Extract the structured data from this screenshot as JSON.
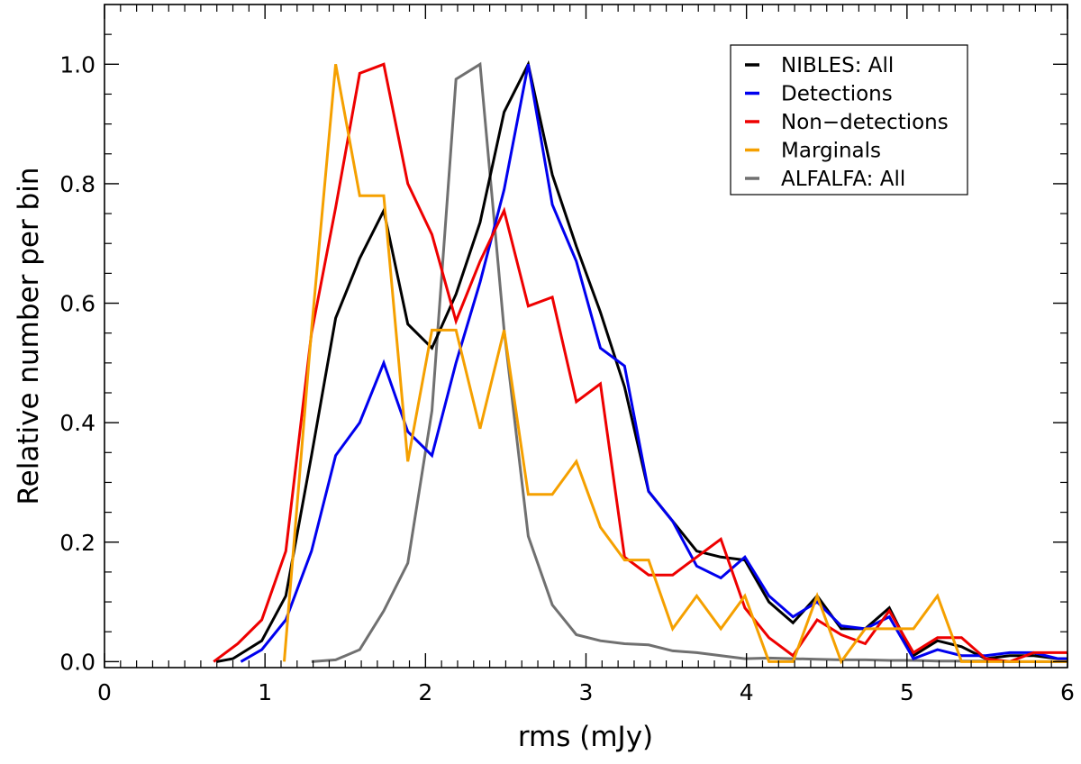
{
  "chart_data": {
    "type": "line",
    "title": "",
    "xlabel": "rms (mJy)",
    "ylabel": "Relative number per bin",
    "xlim": [
      0,
      6
    ],
    "ylim": [
      -0.01,
      1.1
    ],
    "xticks": [
      0,
      1,
      2,
      3,
      4,
      5,
      6
    ],
    "xtick_labels": [
      "0",
      "1",
      "2",
      "3",
      "4",
      "5",
      "6"
    ],
    "yticks": [
      0.0,
      0.2,
      0.4,
      0.6,
      0.8,
      1.0
    ],
    "ytick_labels": [
      "0.0",
      "0.2",
      "0.4",
      "0.6",
      "0.8",
      "1.0"
    ],
    "grid": false,
    "legend_position": "top-right",
    "series": [
      {
        "name": "NIBLES: All",
        "color": "#000000",
        "x": [
          0.7,
          0.8,
          0.98,
          1.13,
          1.29,
          1.44,
          1.59,
          1.74,
          1.89,
          2.04,
          2.19,
          2.34,
          2.49,
          2.64,
          2.79,
          2.94,
          3.09,
          3.24,
          3.39,
          3.54,
          3.69,
          3.84,
          3.99,
          4.14,
          4.29,
          4.44,
          4.59,
          4.74,
          4.89,
          5.04,
          5.19,
          5.34,
          5.49,
          5.64,
          5.79,
          5.94,
          6.0
        ],
        "y": [
          0.0,
          0.005,
          0.035,
          0.11,
          0.345,
          0.575,
          0.675,
          0.755,
          0.565,
          0.525,
          0.615,
          0.735,
          0.92,
          1.0,
          0.815,
          0.695,
          0.585,
          0.46,
          0.285,
          0.235,
          0.185,
          0.175,
          0.17,
          0.1,
          0.065,
          0.11,
          0.055,
          0.055,
          0.09,
          0.01,
          0.035,
          0.025,
          0.005,
          0.01,
          0.01,
          0.005,
          0.005
        ]
      },
      {
        "name": "Detections",
        "color": "#0000ee",
        "x": [
          0.85,
          0.98,
          1.13,
          1.29,
          1.44,
          1.59,
          1.74,
          1.89,
          2.04,
          2.19,
          2.34,
          2.49,
          2.64,
          2.79,
          2.94,
          3.09,
          3.24,
          3.39,
          3.54,
          3.69,
          3.84,
          3.99,
          4.14,
          4.29,
          4.44,
          4.59,
          4.74,
          4.89,
          5.04,
          5.19,
          5.34,
          5.49,
          5.64,
          5.79,
          5.94,
          6.0
        ],
        "y": [
          0.0,
          0.02,
          0.07,
          0.185,
          0.345,
          0.4,
          0.5,
          0.385,
          0.345,
          0.5,
          0.635,
          0.79,
          1.0,
          0.765,
          0.67,
          0.525,
          0.495,
          0.285,
          0.235,
          0.16,
          0.14,
          0.175,
          0.11,
          0.075,
          0.1,
          0.06,
          0.055,
          0.075,
          0.005,
          0.02,
          0.01,
          0.01,
          0.015,
          0.015,
          0.005,
          0.005
        ]
      },
      {
        "name": "Non−detections",
        "color": "#ee0000",
        "x": [
          0.68,
          0.83,
          0.98,
          1.13,
          1.29,
          1.44,
          1.59,
          1.74,
          1.89,
          2.04,
          2.19,
          2.34,
          2.49,
          2.64,
          2.79,
          2.94,
          3.09,
          3.24,
          3.39,
          3.54,
          3.69,
          3.84,
          3.99,
          4.14,
          4.29,
          4.44,
          4.59,
          4.74,
          4.89,
          5.04,
          5.19,
          5.34,
          5.49,
          5.64,
          5.79,
          5.94,
          6.0
        ],
        "y": [
          0.0,
          0.03,
          0.07,
          0.185,
          0.55,
          0.76,
          0.985,
          1.0,
          0.8,
          0.715,
          0.57,
          0.67,
          0.755,
          0.595,
          0.61,
          0.435,
          0.465,
          0.175,
          0.145,
          0.145,
          0.175,
          0.205,
          0.09,
          0.04,
          0.01,
          0.07,
          0.045,
          0.03,
          0.085,
          0.015,
          0.04,
          0.04,
          0.005,
          0.0,
          0.015,
          0.015,
          0.015
        ]
      },
      {
        "name": "Marginals",
        "color": "#f5a000",
        "x": [
          1.12,
          1.29,
          1.44,
          1.59,
          1.74,
          1.89,
          2.04,
          2.19,
          2.34,
          2.49,
          2.64,
          2.79,
          2.94,
          3.09,
          3.24,
          3.39,
          3.54,
          3.69,
          3.84,
          3.99,
          4.14,
          4.29,
          4.44,
          4.59,
          4.74,
          4.89,
          5.04,
          5.19,
          5.34,
          5.49,
          5.64,
          5.79,
          5.94,
          6.0
        ],
        "y": [
          0.0,
          0.555,
          1.0,
          0.78,
          0.78,
          0.335,
          0.555,
          0.555,
          0.39,
          0.555,
          0.28,
          0.28,
          0.335,
          0.225,
          0.17,
          0.17,
          0.055,
          0.11,
          0.055,
          0.11,
          0.0,
          0.0,
          0.11,
          0.0,
          0.055,
          0.055,
          0.055,
          0.11,
          0.0,
          0.0,
          0.0,
          0.0,
          0.0,
          0.0
        ]
      },
      {
        "name": "ALFALFA: All",
        "color": "#707070",
        "x": [
          1.29,
          1.44,
          1.59,
          1.74,
          1.89,
          2.04,
          2.19,
          2.34,
          2.49,
          2.64,
          2.79,
          2.94,
          3.09,
          3.24,
          3.39,
          3.54,
          3.69,
          3.84,
          3.99,
          4.14,
          4.29,
          4.44,
          4.59,
          4.74,
          4.89,
          5.04,
          5.19,
          5.34,
          5.49,
          5.64,
          5.79,
          5.94,
          6.0
        ],
        "y": [
          0.0,
          0.003,
          0.02,
          0.085,
          0.165,
          0.42,
          0.975,
          1.0,
          0.555,
          0.21,
          0.095,
          0.045,
          0.035,
          0.03,
          0.028,
          0.018,
          0.015,
          0.01,
          0.005,
          0.006,
          0.005,
          0.004,
          0.003,
          0.003,
          0.002,
          0.002,
          0.001,
          0.001,
          0.001,
          0.0,
          0.0,
          0.0,
          0.0
        ]
      }
    ]
  }
}
